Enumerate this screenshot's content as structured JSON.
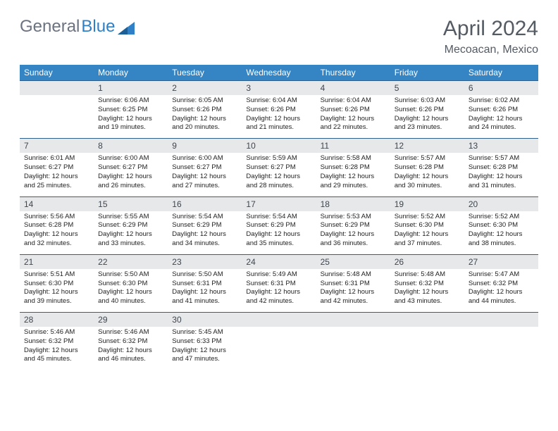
{
  "logo": {
    "part1": "General",
    "part2": "Blue"
  },
  "title": "April 2024",
  "location": "Mecoacan, Mexico",
  "colors": {
    "header_bg": "#3585c5",
    "daynum_bg": "#e7e8ea",
    "border": "#2f5f8c",
    "logo_gray": "#6b7280",
    "logo_blue": "#2f80c6",
    "title_color": "#555b63"
  },
  "day_names": [
    "Sunday",
    "Monday",
    "Tuesday",
    "Wednesday",
    "Thursday",
    "Friday",
    "Saturday"
  ],
  "weeks": [
    {
      "nums": [
        "",
        "1",
        "2",
        "3",
        "4",
        "5",
        "6"
      ],
      "cells": [
        "",
        "Sunrise: 6:06 AM\nSunset: 6:25 PM\nDaylight: 12 hours and 19 minutes.",
        "Sunrise: 6:05 AM\nSunset: 6:26 PM\nDaylight: 12 hours and 20 minutes.",
        "Sunrise: 6:04 AM\nSunset: 6:26 PM\nDaylight: 12 hours and 21 minutes.",
        "Sunrise: 6:04 AM\nSunset: 6:26 PM\nDaylight: 12 hours and 22 minutes.",
        "Sunrise: 6:03 AM\nSunset: 6:26 PM\nDaylight: 12 hours and 23 minutes.",
        "Sunrise: 6:02 AM\nSunset: 6:26 PM\nDaylight: 12 hours and 24 minutes."
      ]
    },
    {
      "nums": [
        "7",
        "8",
        "9",
        "10",
        "11",
        "12",
        "13"
      ],
      "cells": [
        "Sunrise: 6:01 AM\nSunset: 6:27 PM\nDaylight: 12 hours and 25 minutes.",
        "Sunrise: 6:00 AM\nSunset: 6:27 PM\nDaylight: 12 hours and 26 minutes.",
        "Sunrise: 6:00 AM\nSunset: 6:27 PM\nDaylight: 12 hours and 27 minutes.",
        "Sunrise: 5:59 AM\nSunset: 6:27 PM\nDaylight: 12 hours and 28 minutes.",
        "Sunrise: 5:58 AM\nSunset: 6:28 PM\nDaylight: 12 hours and 29 minutes.",
        "Sunrise: 5:57 AM\nSunset: 6:28 PM\nDaylight: 12 hours and 30 minutes.",
        "Sunrise: 5:57 AM\nSunset: 6:28 PM\nDaylight: 12 hours and 31 minutes."
      ]
    },
    {
      "nums": [
        "14",
        "15",
        "16",
        "17",
        "18",
        "19",
        "20"
      ],
      "cells": [
        "Sunrise: 5:56 AM\nSunset: 6:28 PM\nDaylight: 12 hours and 32 minutes.",
        "Sunrise: 5:55 AM\nSunset: 6:29 PM\nDaylight: 12 hours and 33 minutes.",
        "Sunrise: 5:54 AM\nSunset: 6:29 PM\nDaylight: 12 hours and 34 minutes.",
        "Sunrise: 5:54 AM\nSunset: 6:29 PM\nDaylight: 12 hours and 35 minutes.",
        "Sunrise: 5:53 AM\nSunset: 6:29 PM\nDaylight: 12 hours and 36 minutes.",
        "Sunrise: 5:52 AM\nSunset: 6:30 PM\nDaylight: 12 hours and 37 minutes.",
        "Sunrise: 5:52 AM\nSunset: 6:30 PM\nDaylight: 12 hours and 38 minutes."
      ]
    },
    {
      "nums": [
        "21",
        "22",
        "23",
        "24",
        "25",
        "26",
        "27"
      ],
      "cells": [
        "Sunrise: 5:51 AM\nSunset: 6:30 PM\nDaylight: 12 hours and 39 minutes.",
        "Sunrise: 5:50 AM\nSunset: 6:30 PM\nDaylight: 12 hours and 40 minutes.",
        "Sunrise: 5:50 AM\nSunset: 6:31 PM\nDaylight: 12 hours and 41 minutes.",
        "Sunrise: 5:49 AM\nSunset: 6:31 PM\nDaylight: 12 hours and 42 minutes.",
        "Sunrise: 5:48 AM\nSunset: 6:31 PM\nDaylight: 12 hours and 42 minutes.",
        "Sunrise: 5:48 AM\nSunset: 6:32 PM\nDaylight: 12 hours and 43 minutes.",
        "Sunrise: 5:47 AM\nSunset: 6:32 PM\nDaylight: 12 hours and 44 minutes."
      ]
    },
    {
      "nums": [
        "28",
        "29",
        "30",
        "",
        "",
        "",
        ""
      ],
      "cells": [
        "Sunrise: 5:46 AM\nSunset: 6:32 PM\nDaylight: 12 hours and 45 minutes.",
        "Sunrise: 5:46 AM\nSunset: 6:32 PM\nDaylight: 12 hours and 46 minutes.",
        "Sunrise: 5:45 AM\nSunset: 6:33 PM\nDaylight: 12 hours and 47 minutes.",
        "",
        "",
        "",
        ""
      ]
    }
  ]
}
